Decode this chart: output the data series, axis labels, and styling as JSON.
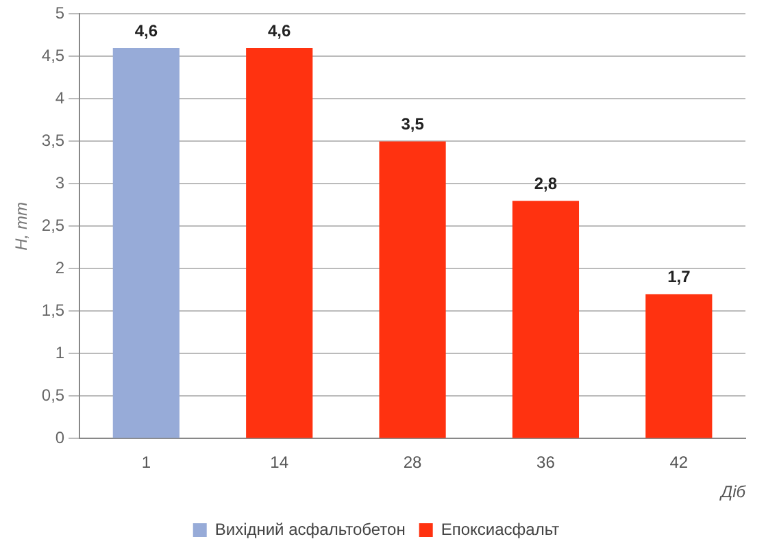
{
  "chart_data": {
    "type": "bar",
    "ylabel": "H, mm",
    "xlabel": "Діб",
    "categories": [
      "1",
      "14",
      "28",
      "36",
      "42"
    ],
    "series": [
      {
        "name": "Вихідний асфальтобетон",
        "color": "#97abd8",
        "values": [
          4.6,
          null,
          null,
          null,
          null
        ],
        "value_labels": [
          "4,6",
          null,
          null,
          null,
          null
        ]
      },
      {
        "name": "Епоксиасфальт",
        "color": "#ff3210",
        "values": [
          null,
          4.6,
          3.5,
          2.8,
          1.7
        ],
        "value_labels": [
          null,
          "4,6",
          "3,5",
          "2,8",
          "1,7"
        ]
      }
    ],
    "ylim": [
      0,
      5
    ],
    "yticks": [
      0,
      {
        "value": 0.5,
        "label": "0,5"
      },
      1,
      {
        "value": 1.5,
        "label": "1,5"
      },
      2,
      {
        "value": 2.5,
        "label": "2,5"
      },
      3,
      {
        "value": 3.5,
        "label": "3,5"
      },
      4,
      {
        "value": 4.5,
        "label": "4,5"
      },
      5
    ],
    "grid": "y",
    "legend": "bottom"
  }
}
